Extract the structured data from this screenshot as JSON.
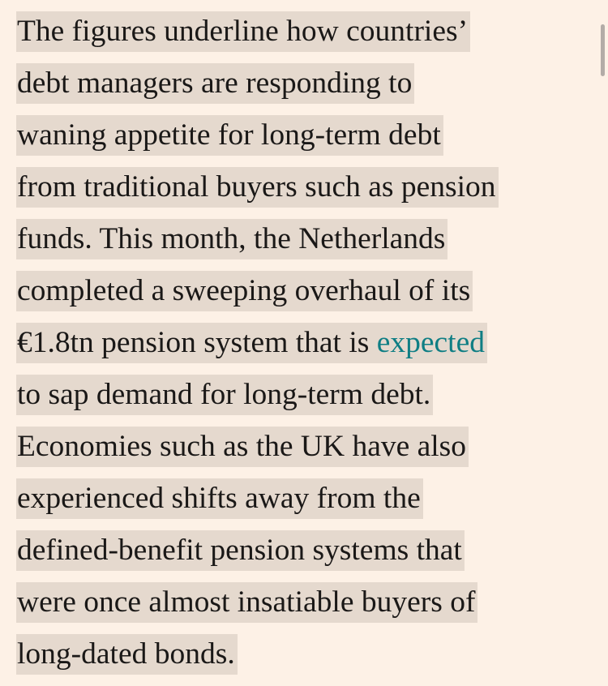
{
  "article": {
    "lines": [
      "The figures underline how countries’",
      "debt managers are responding to",
      "waning appetite for long-term debt",
      "from traditional buyers such as pension",
      "funds. This month, the Netherlands",
      "completed a sweeping overhaul of its",
      {
        "before": "€1.8tn pension system that is ",
        "link": "expected"
      },
      "to sap demand for long-term debt.",
      "Economies such as the UK have also",
      "experienced shifts away from the",
      "defined-benefit pension systems that",
      "were once almost insatiable buyers of",
      "long-dated bonds."
    ]
  },
  "colors": {
    "background": "#fdf1e6",
    "highlight": "#e5d9ce",
    "text": "#1a1817",
    "link": "#0f7e84"
  }
}
